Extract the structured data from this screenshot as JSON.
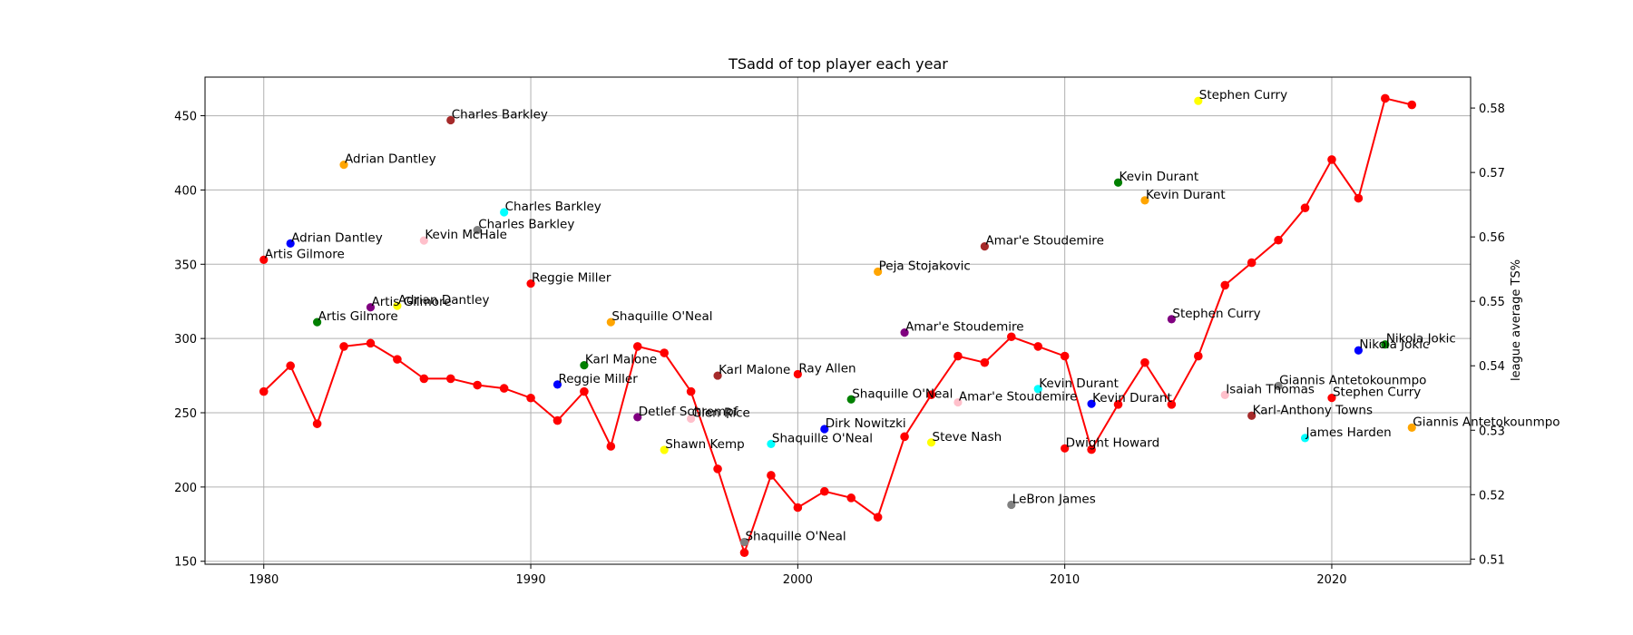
{
  "chart_data": {
    "type": "scatter",
    "title": "TSadd of top player each year",
    "xlabel": "",
    "ylabel": "",
    "y2label": "league average TS%",
    "xlim": [
      1977.8,
      2025.2
    ],
    "ylim": [
      148,
      476
    ],
    "y2lim": [
      0.5092,
      0.5848
    ],
    "xticks": [
      1980,
      1990,
      2000,
      2010,
      2020
    ],
    "yticks": [
      150,
      200,
      250,
      300,
      350,
      400,
      450
    ],
    "y2ticks": [
      0.51,
      0.52,
      0.53,
      0.54,
      0.55,
      0.56,
      0.57,
      0.58
    ],
    "grid": true,
    "players": [
      {
        "year": 1980,
        "tsadd": 353,
        "name": "Artis Gilmore",
        "color": "#ff0000"
      },
      {
        "year": 1981,
        "tsadd": 364,
        "name": "Adrian Dantley",
        "color": "#0000ff"
      },
      {
        "year": 1982,
        "tsadd": 311,
        "name": "Artis Gilmore",
        "color": "#008000"
      },
      {
        "year": 1983,
        "tsadd": 417,
        "name": "Adrian Dantley",
        "color": "#ffa500"
      },
      {
        "year": 1984,
        "tsadd": 321,
        "name": "Artis Gilmore",
        "color": "#800080"
      },
      {
        "year": 1985,
        "tsadd": 322,
        "name": "Adrian Dantley",
        "color": "#ffff00"
      },
      {
        "year": 1986,
        "tsadd": 366,
        "name": "Kevin McHale",
        "color": "#ffc0cb"
      },
      {
        "year": 1987,
        "tsadd": 447,
        "name": "Charles Barkley",
        "color": "#a52a2a"
      },
      {
        "year": 1988,
        "tsadd": 373,
        "name": "Charles Barkley",
        "color": "#808080"
      },
      {
        "year": 1989,
        "tsadd": 385,
        "name": "Charles Barkley",
        "color": "#00ffff"
      },
      {
        "year": 1990,
        "tsadd": 337,
        "name": "Reggie Miller",
        "color": "#ff0000"
      },
      {
        "year": 1991,
        "tsadd": 269,
        "name": "Reggie Miller",
        "color": "#0000ff"
      },
      {
        "year": 1992,
        "tsadd": 282,
        "name": "Karl Malone",
        "color": "#008000"
      },
      {
        "year": 1993,
        "tsadd": 311,
        "name": "Shaquille O'Neal",
        "color": "#ffa500"
      },
      {
        "year": 1994,
        "tsadd": 247,
        "name": "Detlef Schrempf",
        "color": "#800080"
      },
      {
        "year": 1995,
        "tsadd": 225,
        "name": "Shawn Kemp",
        "color": "#ffff00"
      },
      {
        "year": 1996,
        "tsadd": 246,
        "name": "Glen Rice",
        "color": "#ffc0cb"
      },
      {
        "year": 1997,
        "tsadd": 275,
        "name": "Karl Malone",
        "color": "#a52a2a"
      },
      {
        "year": 1998,
        "tsadd": 163,
        "name": "Shaquille O'Neal",
        "color": "#808080"
      },
      {
        "year": 1999,
        "tsadd": 229,
        "name": "Shaquille O'Neal",
        "color": "#00ffff"
      },
      {
        "year": 2000,
        "tsadd": 276,
        "name": "Ray Allen",
        "color": "#ff0000"
      },
      {
        "year": 2001,
        "tsadd": 239,
        "name": "Dirk Nowitzki",
        "color": "#0000ff"
      },
      {
        "year": 2002,
        "tsadd": 259,
        "name": "Shaquille O'Neal",
        "color": "#008000"
      },
      {
        "year": 2003,
        "tsadd": 345,
        "name": "Peja Stojakovic",
        "color": "#ffa500"
      },
      {
        "year": 2004,
        "tsadd": 304,
        "name": "Amar'e Stoudemire",
        "color": "#800080"
      },
      {
        "year": 2005,
        "tsadd": 230,
        "name": "Steve Nash",
        "color": "#ffff00"
      },
      {
        "year": 2006,
        "tsadd": 257,
        "name": "Amar'e Stoudemire",
        "color": "#ffc0cb"
      },
      {
        "year": 2007,
        "tsadd": 362,
        "name": "Amar'e Stoudemire",
        "color": "#a52a2a"
      },
      {
        "year": 2008,
        "tsadd": 188,
        "name": "LeBron James",
        "color": "#808080"
      },
      {
        "year": 2009,
        "tsadd": 266,
        "name": "Kevin Durant",
        "color": "#00ffff"
      },
      {
        "year": 2010,
        "tsadd": 226,
        "name": "Dwight Howard",
        "color": "#ff0000"
      },
      {
        "year": 2011,
        "tsadd": 256,
        "name": "Kevin Durant",
        "color": "#0000ff"
      },
      {
        "year": 2012,
        "tsadd": 405,
        "name": "Kevin Durant",
        "color": "#008000"
      },
      {
        "year": 2013,
        "tsadd": 393,
        "name": "Kevin Durant",
        "color": "#ffa500"
      },
      {
        "year": 2014,
        "tsadd": 313,
        "name": "Stephen Curry",
        "color": "#800080"
      },
      {
        "year": 2015,
        "tsadd": 460,
        "name": "Stephen Curry",
        "color": "#ffff00"
      },
      {
        "year": 2016,
        "tsadd": 262,
        "name": "Isaiah Thomas",
        "color": "#ffc0cb"
      },
      {
        "year": 2017,
        "tsadd": 248,
        "name": "Karl-Anthony Towns",
        "color": "#a52a2a"
      },
      {
        "year": 2018,
        "tsadd": 268,
        "name": "Giannis Antetokounmpo",
        "color": "#808080"
      },
      {
        "year": 2019,
        "tsadd": 233,
        "name": "James Harden",
        "color": "#00ffff"
      },
      {
        "year": 2020,
        "tsadd": 260,
        "name": "Stephen Curry",
        "color": "#ff0000"
      },
      {
        "year": 2021,
        "tsadd": 292,
        "name": "Nikola Jokic",
        "color": "#0000ff"
      },
      {
        "year": 2022,
        "tsadd": 296,
        "name": "Nikola Jokic",
        "color": "#008000"
      },
      {
        "year": 2023,
        "tsadd": 240,
        "name": "Giannis Antetokounmpo",
        "color": "#ffa500"
      }
    ],
    "league_ts": {
      "color": "#ff0000",
      "years": [
        1980,
        1981,
        1982,
        1983,
        1984,
        1985,
        1986,
        1987,
        1988,
        1989,
        1990,
        1991,
        1992,
        1993,
        1994,
        1995,
        1996,
        1997,
        1998,
        1999,
        2000,
        2001,
        2002,
        2003,
        2004,
        2005,
        2006,
        2007,
        2008,
        2009,
        2010,
        2011,
        2012,
        2013,
        2014,
        2015,
        2016,
        2017,
        2018,
        2019,
        2020,
        2021,
        2022,
        2023
      ],
      "values": [
        0.536,
        0.54,
        0.531,
        0.543,
        0.5435,
        0.541,
        0.538,
        0.538,
        0.537,
        0.5365,
        0.535,
        0.5315,
        0.536,
        0.5275,
        0.543,
        0.542,
        0.536,
        0.524,
        0.511,
        0.523,
        0.518,
        0.5205,
        0.5195,
        0.5165,
        0.529,
        0.5355,
        0.5415,
        0.5405,
        0.5445,
        0.543,
        0.5415,
        0.527,
        0.534,
        0.5405,
        0.534,
        0.5415,
        0.5525,
        0.556,
        0.5595,
        0.5645,
        0.572,
        0.566,
        0.5815,
        0.5805
      ]
    }
  }
}
